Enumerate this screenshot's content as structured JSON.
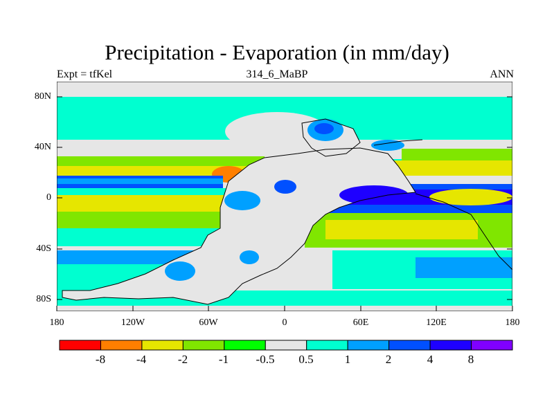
{
  "title": "Precipitation - Evaporation (in mm/day)",
  "subtitle_left": "Expt = tfKel",
  "subtitle_center": "314_6_MaBP",
  "subtitle_right": "ANN",
  "y_tick_labels": [
    "80N",
    "40N",
    "0",
    "40S",
    "80S"
  ],
  "x_tick_labels": [
    "180",
    "120W",
    "60W",
    "0",
    "60E",
    "120E",
    "180"
  ],
  "colorbar": {
    "colors": [
      "#ff0000",
      "#ff7f00",
      "#e6e600",
      "#80e600",
      "#00ff00",
      "#e6e6e6",
      "#00ffd0",
      "#00a0ff",
      "#0050ff",
      "#1e00ff",
      "#8000ff"
    ],
    "labels": [
      "-8",
      "-4",
      "-2",
      "-1",
      "-0.5",
      "0.5",
      "1",
      "2",
      "4",
      "8"
    ]
  },
  "map": {
    "background_color": "#e6e6e6",
    "coastline_color": "#000000"
  }
}
